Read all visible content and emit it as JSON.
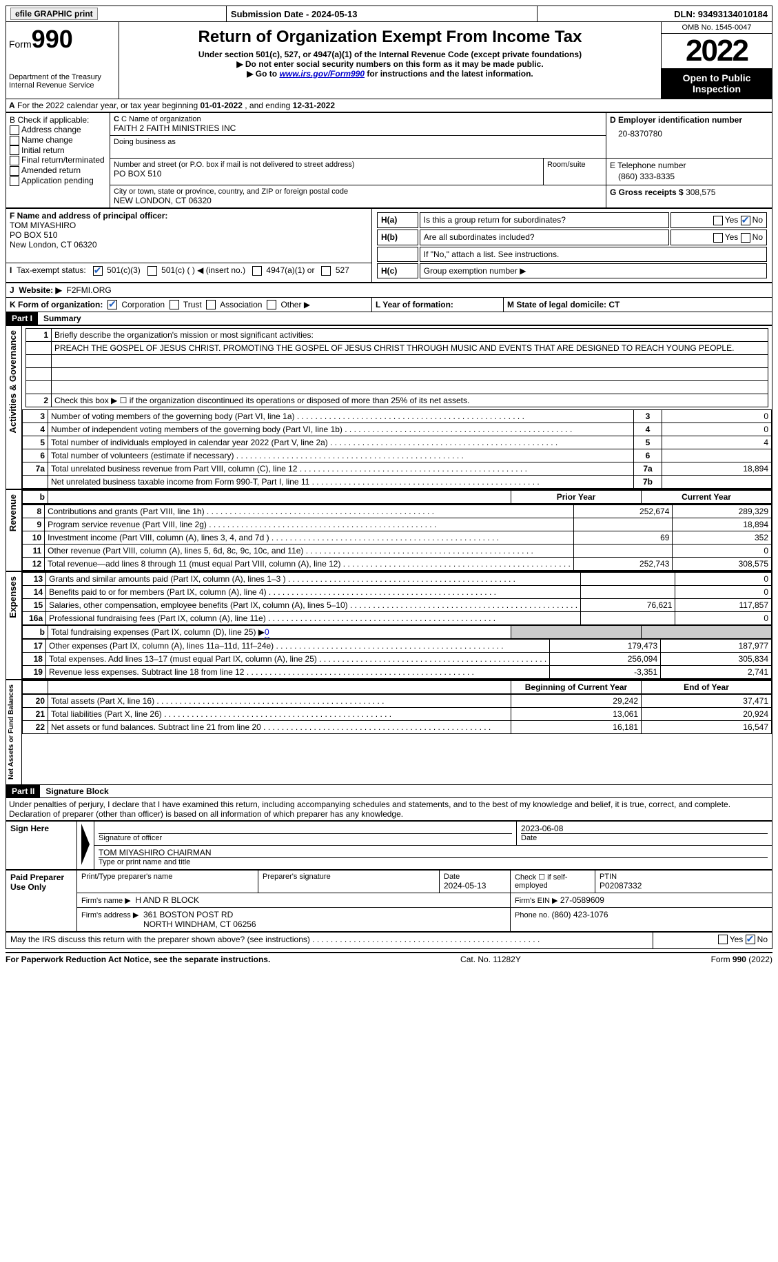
{
  "topbar": {
    "efile": "efile GRAPHIC print",
    "submission": "Submission Date - 2024-05-13",
    "dln": "DLN: 93493134010184"
  },
  "header": {
    "form_label": "Form",
    "form_num": "990",
    "dept": "Department of the Treasury",
    "irs": "Internal Revenue Service",
    "title": "Return of Organization Exempt From Income Tax",
    "sub1": "Under section 501(c), 527, or 4947(a)(1) of the Internal Revenue Code (except private foundations)",
    "sub2": "Do not enter social security numbers on this form as it may be made public.",
    "sub3_pre": "Go to ",
    "sub3_link": "www.irs.gov/Form990",
    "sub3_post": " for instructions and the latest information.",
    "omb": "OMB No. 1545-0047",
    "year": "2022",
    "open": "Open to Public Inspection"
  },
  "line_a": {
    "text_pre": "For the 2022 calendar year, or tax year beginning ",
    "begin": "01-01-2022",
    "mid": " , and ending ",
    "end": "12-31-2022"
  },
  "box_b": {
    "title": "B Check if applicable:",
    "opts": [
      "Address change",
      "Name change",
      "Initial return",
      "Final return/terminated",
      "Amended return",
      "Application pending"
    ]
  },
  "box_c": {
    "label": "C Name of organization",
    "name": "FAITH 2 FAITH MINISTRIES INC",
    "dba": "Doing business as",
    "addr_label": "Number and street (or P.O. box if mail is not delivered to street address)",
    "room": "Room/suite",
    "addr": "PO BOX 510",
    "city_label": "City or town, state or province, country, and ZIP or foreign postal code",
    "city": "NEW LONDON, CT  06320"
  },
  "box_d": {
    "label": "D Employer identification number",
    "value": "20-8370780"
  },
  "box_e": {
    "label": "E Telephone number",
    "value": "(860) 333-8335"
  },
  "box_g": {
    "label": "G Gross receipts $",
    "value": "308,575"
  },
  "box_f": {
    "label": "F Name and address of principal officer:",
    "name": "TOM MIYASHIRO",
    "addr1": "PO BOX 510",
    "addr2": "New London, CT  06320"
  },
  "box_h": {
    "ha": "Is this a group return for subordinates?",
    "hb": "Are all subordinates included?",
    "hb_note": "If \"No,\" attach a list. See instructions.",
    "hc": "Group exemption number ▶",
    "yes": "Yes",
    "no": "No"
  },
  "box_i": {
    "label": "Tax-exempt status:",
    "o1": "501(c)(3)",
    "o2": "501(c) (  ) ◀ (insert no.)",
    "o3": "4947(a)(1) or",
    "o4": "527"
  },
  "box_j": {
    "label": "Website: ▶",
    "value": "F2FMI.ORG"
  },
  "box_k": {
    "label": "K Form of organization:",
    "o1": "Corporation",
    "o2": "Trust",
    "o3": "Association",
    "o4": "Other ▶"
  },
  "box_l": {
    "label": "L Year of formation:"
  },
  "box_m": {
    "label": "M State of legal domicile: CT"
  },
  "part1": {
    "hdr": "Part I",
    "title": "Summary"
  },
  "summary": {
    "q1": "Briefly describe the organization's mission or most significant activities:",
    "mission": "PREACH THE GOSPEL OF JESUS CHRIST. PROMOTING THE GOSPEL OF JESUS CHRIST THROUGH MUSIC AND EVENTS THAT ARE DESIGNED TO REACH YOUNG PEOPLE.",
    "q2": "Check this box ▶ ☐ if the organization discontinued its operations or disposed of more than 25% of its net assets.",
    "rows_gov": [
      {
        "n": "3",
        "t": "Number of voting members of the governing body (Part VI, line 1a)",
        "box": "3",
        "v": "0"
      },
      {
        "n": "4",
        "t": "Number of independent voting members of the governing body (Part VI, line 1b)",
        "box": "4",
        "v": "0"
      },
      {
        "n": "5",
        "t": "Total number of individuals employed in calendar year 2022 (Part V, line 2a)",
        "box": "5",
        "v": "4"
      },
      {
        "n": "6",
        "t": "Total number of volunteers (estimate if necessary)",
        "box": "6",
        "v": ""
      },
      {
        "n": "7a",
        "t": "Total unrelated business revenue from Part VIII, column (C), line 12",
        "box": "7a",
        "v": "18,894"
      },
      {
        "n": "",
        "t": "Net unrelated business taxable income from Form 990-T, Part I, line 11",
        "box": "7b",
        "v": ""
      }
    ],
    "col_prior": "Prior Year",
    "col_curr": "Current Year",
    "rows_rev": [
      {
        "n": "8",
        "t": "Contributions and grants (Part VIII, line 1h)",
        "p": "252,674",
        "c": "289,329"
      },
      {
        "n": "9",
        "t": "Program service revenue (Part VIII, line 2g)",
        "p": "",
        "c": "18,894"
      },
      {
        "n": "10",
        "t": "Investment income (Part VIII, column (A), lines 3, 4, and 7d )",
        "p": "69",
        "c": "352"
      },
      {
        "n": "11",
        "t": "Other revenue (Part VIII, column (A), lines 5, 6d, 8c, 9c, 10c, and 11e)",
        "p": "",
        "c": "0"
      },
      {
        "n": "12",
        "t": "Total revenue—add lines 8 through 11 (must equal Part VIII, column (A), line 12)",
        "p": "252,743",
        "c": "308,575"
      }
    ],
    "rows_exp": [
      {
        "n": "13",
        "t": "Grants and similar amounts paid (Part IX, column (A), lines 1–3 )",
        "p": "",
        "c": "0"
      },
      {
        "n": "14",
        "t": "Benefits paid to or for members (Part IX, column (A), line 4)",
        "p": "",
        "c": "0"
      },
      {
        "n": "15",
        "t": "Salaries, other compensation, employee benefits (Part IX, column (A), lines 5–10)",
        "p": "76,621",
        "c": "117,857"
      },
      {
        "n": "16a",
        "t": "Professional fundraising fees (Part IX, column (A), line 11e)",
        "p": "",
        "c": "0"
      }
    ],
    "row_16b_pre": "Total fundraising expenses (Part IX, column (D), line 25) ▶",
    "row_16b_val": "0",
    "rows_exp2": [
      {
        "n": "17",
        "t": "Other expenses (Part IX, column (A), lines 11a–11d, 11f–24e)",
        "p": "179,473",
        "c": "187,977"
      },
      {
        "n": "18",
        "t": "Total expenses. Add lines 13–17 (must equal Part IX, column (A), line 25)",
        "p": "256,094",
        "c": "305,834"
      },
      {
        "n": "19",
        "t": "Revenue less expenses. Subtract line 18 from line 12",
        "p": "-3,351",
        "c": "2,741"
      }
    ],
    "col_bcy": "Beginning of Current Year",
    "col_eoy": "End of Year",
    "rows_net": [
      {
        "n": "20",
        "t": "Total assets (Part X, line 16)",
        "p": "29,242",
        "c": "37,471"
      },
      {
        "n": "21",
        "t": "Total liabilities (Part X, line 26)",
        "p": "13,061",
        "c": "20,924"
      },
      {
        "n": "22",
        "t": "Net assets or fund balances. Subtract line 21 from line 20",
        "p": "16,181",
        "c": "16,547"
      }
    ],
    "side_gov": "Activities & Governance",
    "side_rev": "Revenue",
    "side_exp": "Expenses",
    "side_net": "Net Assets or Fund Balances"
  },
  "part2": {
    "hdr": "Part II",
    "title": "Signature Block"
  },
  "sig": {
    "penalty": "Under penalties of perjury, I declare that I have examined this return, including accompanying schedules and statements, and to the best of my knowledge and belief, it is true, correct, and complete. Declaration of preparer (other than officer) is based on all information of which preparer has any knowledge.",
    "sign_here": "Sign Here",
    "sig_officer": "Signature of officer",
    "date1": "2023-06-08",
    "date_label": "Date",
    "name_title": "TOM MIYASHIRO  CHAIRMAN",
    "type_name": "Type or print name and title",
    "paid": "Paid Preparer Use Only",
    "print_name": "Print/Type preparer's name",
    "prep_sig": "Preparer's signature",
    "date2_label": "Date",
    "date2": "2024-05-13",
    "check_self": "Check ☐ if self-employed",
    "ptin_label": "PTIN",
    "ptin": "P02087332",
    "firm_name_label": "Firm's name    ▶",
    "firm_name": "H AND R BLOCK",
    "firm_ein_label": "Firm's EIN ▶",
    "firm_ein": "27-0589609",
    "firm_addr_label": "Firm's address ▶",
    "firm_addr1": "361 BOSTON POST RD",
    "firm_addr2": "NORTH WINDHAM, CT  06256",
    "phone_label": "Phone no.",
    "phone": "(860) 423-1076",
    "may_irs": "May the IRS discuss this return with the preparer shown above? (see instructions)"
  },
  "footer": {
    "left": "For Paperwork Reduction Act Notice, see the separate instructions.",
    "mid": "Cat. No. 11282Y",
    "right": "Form 990 (2022)"
  }
}
